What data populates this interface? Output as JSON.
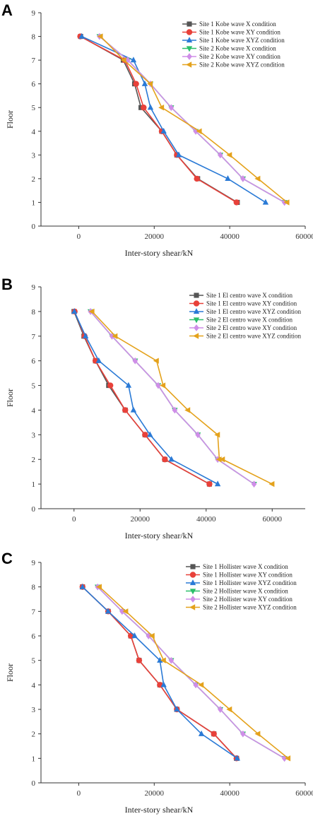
{
  "chart_data": [
    {
      "panel_label": "A",
      "type": "line",
      "xlabel": "Inter-story shear/kN",
      "ylabel": "Floor",
      "xlim": [
        -10000,
        60000
      ],
      "ylim": [
        0,
        9
      ],
      "xticks": [
        "0",
        "20000",
        "40000",
        "60000"
      ],
      "yticks": [
        "0",
        "1",
        "2",
        "3",
        "4",
        "5",
        "6",
        "7",
        "8",
        "9"
      ],
      "grid": false,
      "legend_position": "top-right",
      "series": [
        {
          "name": "Site 1 Kobe wave X condition",
          "color": "#555555",
          "marker": "square",
          "x": [
            42000,
            31500,
            26000,
            22000,
            16500,
            14800,
            11800,
            500
          ],
          "y": [
            1,
            2,
            3,
            4,
            5,
            6,
            7,
            8
          ]
        },
        {
          "name": "Site 1 Kobe wave XY condition",
          "color": "#e8413a",
          "marker": "circle",
          "x": [
            41800,
            31300,
            26000,
            22000,
            17200,
            15200,
            12200,
            400
          ],
          "y": [
            1,
            2,
            3,
            4,
            5,
            6,
            7,
            8
          ]
        },
        {
          "name": "Site 1 Kobe wave XYZ condition",
          "color": "#2a7ad6",
          "marker": "triangle-up",
          "x": [
            49500,
            39500,
            26500,
            22500,
            19000,
            17500,
            14500,
            800
          ],
          "y": [
            1,
            2,
            3,
            4,
            5,
            6,
            7,
            8
          ]
        },
        {
          "name": "Site 2 Kobe wave X condition",
          "color": "#2bbf6a",
          "marker": "triangle-down",
          "x": [
            54500,
            43500,
            37500,
            31000,
            24500,
            19000,
            13000,
            5500
          ],
          "y": [
            1,
            2,
            3,
            4,
            5,
            6,
            7,
            8
          ]
        },
        {
          "name": "Site 2 Kobe wave XY condition",
          "color": "#cf8ee8",
          "marker": "diamond",
          "x": [
            54500,
            43500,
            37500,
            31000,
            24500,
            19000,
            13000,
            5500
          ],
          "y": [
            1,
            2,
            3,
            4,
            5,
            6,
            7,
            8
          ]
        },
        {
          "name": "Site 2 Kobe wave XYZ condition",
          "color": "#e4a21c",
          "marker": "triangle-left",
          "x": [
            55200,
            47500,
            40000,
            32000,
            22000,
            19000,
            12000,
            5800
          ],
          "y": [
            1,
            2,
            3,
            4,
            5,
            6,
            7,
            8
          ]
        }
      ]
    },
    {
      "panel_label": "B",
      "type": "line",
      "xlabel": "Inter-story shear/kN",
      "ylabel": "Floor",
      "xlim": [
        -10000,
        70000
      ],
      "ylim": [
        0,
        9
      ],
      "xticks": [
        "0",
        "20000",
        "40000",
        "60000"
      ],
      "yticks": [
        "0",
        "1",
        "2",
        "3",
        "4",
        "5",
        "6",
        "7",
        "8",
        "9"
      ],
      "grid": false,
      "legend_position": "top-right",
      "series": [
        {
          "name": "Site 1 El centro wave X condition",
          "color": "#555555",
          "marker": "square",
          "x": [
            41000,
            27500,
            21500,
            15500,
            10500,
            6500,
            3000,
            0
          ],
          "y": [
            1,
            2,
            3,
            4,
            5,
            6,
            7,
            8
          ]
        },
        {
          "name": "Site 1 El centro wave XY condition",
          "color": "#e8413a",
          "marker": "circle",
          "x": [
            41000,
            27500,
            21500,
            15500,
            11000,
            6500,
            3200,
            200
          ],
          "y": [
            1,
            2,
            3,
            4,
            5,
            6,
            7,
            8
          ]
        },
        {
          "name": "Site 1 El centro wave XYZ condition",
          "color": "#2a7ad6",
          "marker": "triangle-up",
          "x": [
            43500,
            29500,
            23000,
            18000,
            16500,
            7500,
            3500,
            100
          ],
          "y": [
            1,
            2,
            3,
            4,
            5,
            6,
            7,
            8
          ]
        },
        {
          "name": "Site 2 El centro wave X condition",
          "color": "#2bbf6a",
          "marker": "triangle-down",
          "x": [
            54500,
            43500,
            37500,
            30500,
            25500,
            18500,
            11500,
            5000
          ],
          "y": [
            1,
            2,
            3,
            4,
            5,
            6,
            7,
            8
          ]
        },
        {
          "name": "Site 2 El centro wave XY condition",
          "color": "#cf8ee8",
          "marker": "diamond",
          "x": [
            54500,
            43500,
            37500,
            30500,
            25500,
            18500,
            11500,
            5000
          ],
          "y": [
            1,
            2,
            3,
            4,
            5,
            6,
            7,
            8
          ]
        },
        {
          "name": "Site 2 El centro wave XYZ condition",
          "color": "#e4a21c",
          "marker": "triangle-left",
          "x": [
            60000,
            45000,
            44000,
            43500,
            34500,
            27000,
            25000,
            12500,
            5500
          ],
          "y": [
            1,
            2,
            2,
            3,
            4,
            5,
            6,
            7,
            8
          ]
        }
      ]
    },
    {
      "panel_label": "C",
      "type": "line",
      "xlabel": "Inter-story shear/kN",
      "ylabel": "Floor",
      "xlim": [
        -10000,
        60000
      ],
      "ylim": [
        0,
        9
      ],
      "xticks": [
        "0",
        "20000",
        "40000",
        "60000"
      ],
      "yticks": [
        "0",
        "1",
        "2",
        "3",
        "4",
        "5",
        "6",
        "7",
        "8",
        "9"
      ],
      "grid": false,
      "legend_position": "top-right",
      "series": [
        {
          "name": "Site 1 Hollister wave X condition",
          "color": "#555555",
          "marker": "square",
          "x": [
            41800,
            35800,
            26000,
            21500,
            16000,
            13800,
            7800,
            1000
          ],
          "y": [
            1,
            2,
            3,
            4,
            5,
            6,
            7,
            8
          ]
        },
        {
          "name": "Site 1 Hollister wave XY condition",
          "color": "#e8413a",
          "marker": "circle",
          "x": [
            41800,
            35800,
            26000,
            21500,
            16000,
            13800,
            7800,
            1000
          ],
          "y": [
            1,
            2,
            3,
            4,
            5,
            6,
            7,
            8
          ]
        },
        {
          "name": "Site 1 Hollister wave XYZ condition",
          "color": "#2a7ad6",
          "marker": "triangle-up",
          "x": [
            42000,
            32500,
            26000,
            22500,
            21500,
            14800,
            7800,
            1000
          ],
          "y": [
            1,
            2,
            3,
            4,
            5,
            6,
            7,
            8
          ]
        },
        {
          "name": "Site 2 Hollister wave X condition",
          "color": "#2bbf6a",
          "marker": "triangle-down",
          "x": [
            54500,
            43500,
            37500,
            31000,
            24500,
            18500,
            11500,
            5000
          ],
          "y": [
            1,
            2,
            3,
            4,
            5,
            6,
            7,
            8
          ]
        },
        {
          "name": "Site 2 Hollister wave XY condition",
          "color": "#cf8ee8",
          "marker": "diamond",
          "x": [
            54500,
            43500,
            37500,
            31000,
            24500,
            18500,
            11500,
            5000
          ],
          "y": [
            1,
            2,
            3,
            4,
            5,
            6,
            7,
            8
          ]
        },
        {
          "name": "Site 2 Hollister wave XYZ condition",
          "color": "#e4a21c",
          "marker": "triangle-left",
          "x": [
            55500,
            47500,
            40000,
            32500,
            22500,
            19500,
            12500,
            5500
          ],
          "y": [
            1,
            2,
            3,
            4,
            5,
            6,
            7,
            8
          ]
        }
      ]
    }
  ]
}
